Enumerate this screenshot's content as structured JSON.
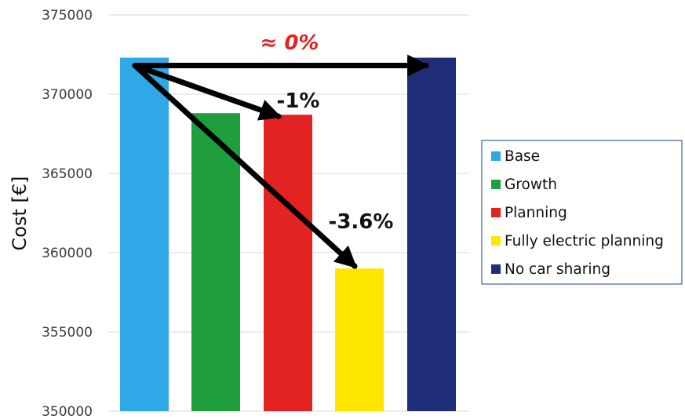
{
  "chart_data": {
    "type": "bar",
    "title": "",
    "xlabel": "",
    "ylabel": "Cost [€]",
    "ylim": [
      350000,
      375000
    ],
    "yticks": [
      350000,
      355000,
      360000,
      365000,
      370000,
      375000
    ],
    "ytick_labels": [
      "350000",
      "355000",
      "360000",
      "365000",
      "370000",
      "375000"
    ],
    "grid": true,
    "legend_position": "right",
    "series": [
      {
        "name": "Base",
        "value": 372300,
        "color": "#2EA8E6"
      },
      {
        "name": "Growth",
        "value": 368800,
        "color": "#1E9E3C"
      },
      {
        "name": "Planning",
        "value": 368700,
        "color": "#E32222"
      },
      {
        "name": "Fully electric planning",
        "value": 359000,
        "color": "#FFE600"
      },
      {
        "name": "No car sharing",
        "value": 372300,
        "color": "#1F2C78"
      }
    ],
    "annotations": [
      {
        "text": "≈ 0%",
        "color": "#E32222",
        "from": "Base",
        "to": "No car sharing"
      },
      {
        "text": "-1%",
        "color": "#111111",
        "from": "Base",
        "to": "Planning"
      },
      {
        "text": "-3.6%",
        "color": "#111111",
        "from": "Base",
        "to": "Fully electric planning"
      }
    ]
  }
}
